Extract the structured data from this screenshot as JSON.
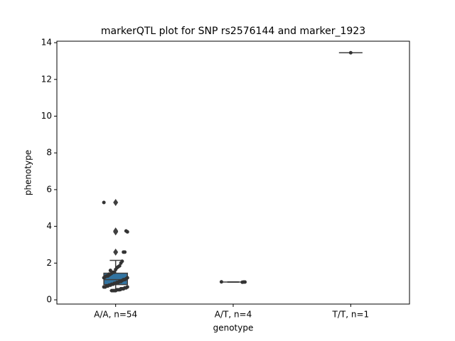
{
  "chart_data": {
    "type": "box",
    "title": "markerQTL plot for SNP rs2576144 and marker_1923",
    "x_label": "genotype",
    "y_label": "phenotype",
    "categories": [
      "A/A, n=54",
      "A/T, n=4",
      "T/T, n=1"
    ],
    "box_colors": [
      "#3274a1",
      "#e1812c",
      "#3a923a"
    ],
    "point_color": "#333333",
    "boxes": [
      {
        "whislo": 0.5,
        "q1": 0.83,
        "med": 1.1,
        "q3": 1.45,
        "whishi": 2.15,
        "fliers": [
          2.6,
          3.7,
          3.75,
          5.3
        ]
      },
      {
        "whislo": 0.96,
        "q1": 0.97,
        "med": 0.97,
        "q3": 0.97,
        "whishi": 0.98,
        "fliers": []
      },
      {
        "whislo": 13.45,
        "q1": 13.45,
        "med": 13.45,
        "q3": 13.45,
        "whishi": 13.45,
        "fliers": []
      }
    ],
    "points": [
      [
        5.3,
        3.7,
        3.75,
        2.6,
        2.6,
        2.1,
        2.0,
        1.85,
        1.8,
        1.75,
        1.65,
        1.5,
        1.5,
        1.45,
        1.4,
        1.35,
        1.3,
        1.3,
        1.25,
        1.2,
        1.2,
        1.15,
        1.1,
        1.1,
        1.05,
        1.0,
        1.0,
        0.95,
        0.95,
        0.9,
        0.9,
        0.85,
        0.85,
        0.8,
        0.8,
        0.75,
        0.75,
        0.7,
        0.7,
        0.7,
        0.65,
        0.65,
        0.6,
        0.6,
        0.6,
        0.55,
        0.55,
        0.55,
        0.5,
        0.5,
        0.5,
        0.5,
        1.6,
        1.4
      ],
      [
        0.98,
        0.97,
        0.97,
        0.96
      ],
      [
        13.45
      ]
    ],
    "ylim": [
      -0.23,
      14.08
    ],
    "yticks": [
      0,
      2,
      4,
      6,
      8,
      10,
      12,
      14
    ]
  }
}
